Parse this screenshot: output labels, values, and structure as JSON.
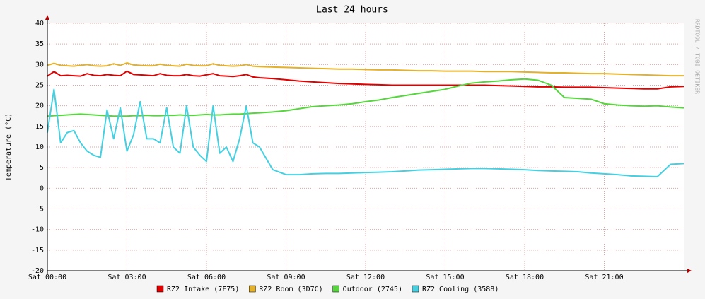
{
  "chart_data": {
    "type": "line",
    "title": "Last 24 hours",
    "y_label": "Temperature (°C)",
    "watermark": "RRDTOOL / TOBI OETIKER",
    "x": [
      0,
      0.25,
      0.5,
      0.75,
      1,
      1.25,
      1.5,
      1.75,
      2,
      2.25,
      2.5,
      2.75,
      3,
      3.25,
      3.5,
      3.75,
      4,
      4.25,
      4.5,
      4.75,
      5,
      5.25,
      5.5,
      5.75,
      6,
      6.25,
      6.5,
      6.75,
      7,
      7.25,
      7.5,
      7.75,
      8,
      8.5,
      9,
      9.5,
      10,
      10.5,
      11,
      11.5,
      12,
      12.5,
      13,
      13.5,
      14,
      14.5,
      15,
      15.5,
      16,
      16.5,
      17,
      17.5,
      18,
      18.5,
      19,
      19.5,
      20,
      20.5,
      21,
      21.5,
      22,
      22.5,
      23,
      23.5,
      24
    ],
    "xlim": [
      0,
      24
    ],
    "xticks": [
      {
        "value": 0,
        "label": "Sat 00:00"
      },
      {
        "value": 3,
        "label": "Sat 03:00"
      },
      {
        "value": 6,
        "label": "Sat 06:00"
      },
      {
        "value": 9,
        "label": "Sat 09:00"
      },
      {
        "value": 12,
        "label": "Sat 12:00"
      },
      {
        "value": 15,
        "label": "Sat 15:00"
      },
      {
        "value": 18,
        "label": "Sat 18:00"
      },
      {
        "value": 21,
        "label": "Sat 21:00"
      }
    ],
    "ylim": [
      -20,
      40
    ],
    "yticks": [
      -20,
      -15,
      -10,
      -5,
      0,
      5,
      10,
      15,
      20,
      25,
      30,
      35,
      40
    ],
    "grid": true,
    "series": [
      {
        "name": "RZ2 Intake (7F75)",
        "color": "#e00000",
        "values": [
          27.2,
          28.3,
          27.3,
          27.4,
          27.3,
          27.2,
          27.8,
          27.4,
          27.3,
          27.6,
          27.4,
          27.3,
          28.4,
          27.6,
          27.5,
          27.4,
          27.3,
          27.8,
          27.4,
          27.3,
          27.3,
          27.6,
          27.3,
          27.2,
          27.5,
          27.8,
          27.3,
          27.2,
          27.1,
          27.3,
          27.6,
          27,
          26.8,
          26.6,
          26.3,
          26,
          25.8,
          25.6,
          25.4,
          25.3,
          25.2,
          25.1,
          25,
          25,
          25,
          25,
          25,
          25,
          25,
          25,
          24.9,
          24.8,
          24.7,
          24.6,
          24.6,
          24.5,
          24.5,
          24.5,
          24.4,
          24.3,
          24.2,
          24.1,
          24.1,
          24.6,
          24.7
        ]
      },
      {
        "name": "RZ2 Room (3D7C)",
        "color": "#e3b12a",
        "values": [
          29.8,
          30.3,
          29.8,
          29.7,
          29.6,
          29.8,
          30,
          29.7,
          29.6,
          29.7,
          30.2,
          29.8,
          30.4,
          29.9,
          29.8,
          29.7,
          29.7,
          30.1,
          29.8,
          29.7,
          29.6,
          30.1,
          29.8,
          29.7,
          29.7,
          30.2,
          29.8,
          29.7,
          29.6,
          29.7,
          30,
          29.6,
          29.5,
          29.4,
          29.3,
          29.2,
          29.1,
          29,
          28.9,
          28.9,
          28.8,
          28.7,
          28.7,
          28.6,
          28.5,
          28.5,
          28.4,
          28.4,
          28.4,
          28.3,
          28.3,
          28.3,
          28.2,
          28.1,
          28,
          28,
          27.9,
          27.8,
          27.8,
          27.7,
          27.6,
          27.5,
          27.4,
          27.3,
          27.3
        ]
      },
      {
        "name": "Outdoor (2745)",
        "color": "#55d63c",
        "values": [
          17.5,
          17.6,
          17.7,
          17.8,
          17.9,
          18,
          17.9,
          17.8,
          17.7,
          17.6,
          17.5,
          17.5,
          17.5,
          17.6,
          17.6,
          17.7,
          17.6,
          17.6,
          17.7,
          17.7,
          17.8,
          17.7,
          17.7,
          17.8,
          17.9,
          17.8,
          17.8,
          17.9,
          18,
          18,
          18.1,
          18.2,
          18.3,
          18.5,
          18.8,
          19.3,
          19.8,
          20,
          20.2,
          20.5,
          21,
          21.4,
          22,
          22.5,
          23,
          23.5,
          24,
          24.8,
          25.5,
          25.8,
          26,
          26.3,
          26.5,
          26.2,
          25,
          22,
          21.8,
          21.6,
          20.5,
          20.2,
          20,
          19.9,
          20,
          19.7,
          19.5
        ]
      },
      {
        "name": "RZ2 Cooling (3588)",
        "color": "#44d0e0",
        "values": [
          13.5,
          24,
          11,
          13.5,
          14,
          11,
          9,
          8,
          7.5,
          19,
          12,
          19.5,
          9,
          13,
          21,
          12,
          12,
          11,
          19.5,
          10,
          8.5,
          20,
          10,
          8,
          6.5,
          20,
          8.5,
          10,
          6.5,
          12,
          20,
          11,
          10,
          4.5,
          3.3,
          3.3,
          3.5,
          3.6,
          3.6,
          3.7,
          3.8,
          3.9,
          4,
          4.2,
          4.4,
          4.5,
          4.6,
          4.7,
          4.8,
          4.8,
          4.7,
          4.6,
          4.5,
          4.3,
          4.2,
          4.1,
          4,
          3.7,
          3.5,
          3.3,
          3,
          2.9,
          2.8,
          5.8,
          6
        ]
      }
    ]
  }
}
